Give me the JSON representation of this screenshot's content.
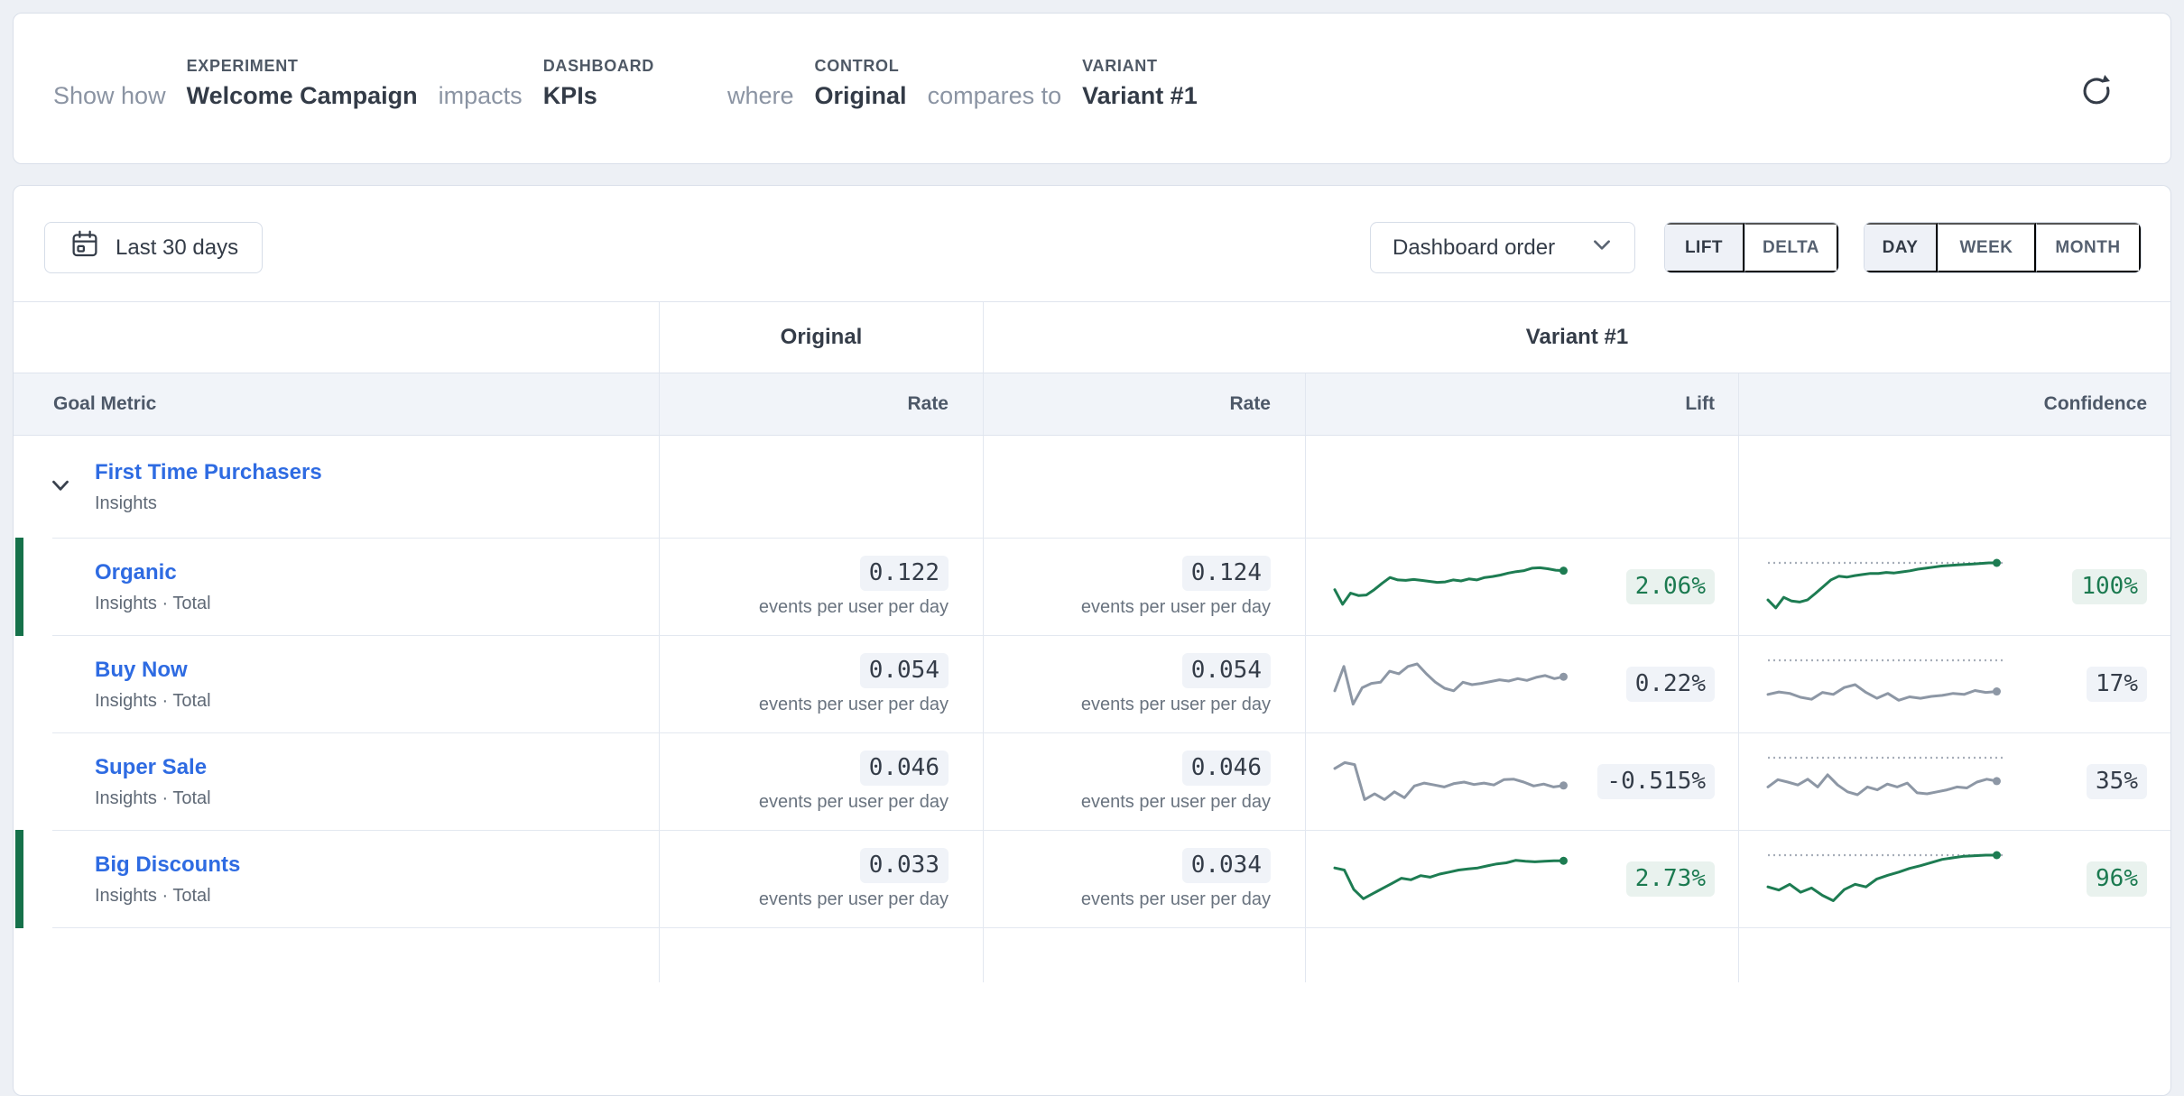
{
  "header": {
    "show_how": "Show how",
    "experiment_label": "EXPERIMENT",
    "experiment_value": "Welcome Campaign",
    "impacts": "impacts",
    "dashboard_label": "DASHBOARD",
    "dashboard_value": "KPIs",
    "where": "where",
    "control_label": "CONTROL",
    "control_value": "Original",
    "compares_to": "compares to",
    "variant_label": "VARIANT",
    "variant_value": "Variant #1"
  },
  "toolbar": {
    "date_range": "Last 30 days",
    "dashboard_order": "Dashboard order",
    "mode_toggle": {
      "0": "LIFT",
      "1": "DELTA"
    },
    "mode_selected": "LIFT",
    "granularity_toggle": {
      "0": "DAY",
      "1": "WEEK",
      "2": "MONTH"
    },
    "granularity_selected": "DAY"
  },
  "table": {
    "group_headers": {
      "control": "Original",
      "variant": "Variant #1"
    },
    "columns": {
      "goal": "Goal Metric",
      "rate_original": "Rate",
      "rate_variant": "Rate",
      "lift": "Lift",
      "confidence": "Confidence"
    },
    "rate_unit": "events per user per day",
    "rows": [
      {
        "type": "group",
        "name": "First Time Purchasers",
        "source": "Insights",
        "expanded": true
      },
      {
        "type": "metric",
        "name": "Organic",
        "source": "Insights · Total",
        "original_rate": "0.122",
        "variant_rate": "0.124",
        "lift": "2.06%",
        "confidence": "100%",
        "positive": true,
        "lift_spark": {
          "color": "green",
          "min": 0,
          "max": 100,
          "values": [
            45,
            15,
            38,
            33,
            34,
            45,
            58,
            70,
            65,
            64,
            66,
            64,
            62,
            60,
            61,
            65,
            63,
            67,
            65,
            70,
            72,
            75,
            79,
            82,
            84,
            89,
            90,
            88,
            85,
            84
          ]
        },
        "conf_spark": {
          "color": "green",
          "min": 8,
          "max": 100,
          "threshold": 100,
          "values": [
            30,
            15,
            35,
            28,
            26,
            30,
            42,
            55,
            68,
            75,
            73,
            76,
            78,
            80,
            80,
            82,
            81,
            83,
            85,
            88,
            90,
            92,
            94,
            95,
            96,
            97,
            98,
            99,
            100,
            100
          ]
        }
      },
      {
        "type": "metric",
        "name": "Buy Now",
        "source": "Insights · Total",
        "original_rate": "0.054",
        "variant_rate": "0.054",
        "lift": "0.22%",
        "confidence": "17%",
        "positive": false,
        "lift_spark": {
          "color": "gray",
          "min": 0,
          "max": 80,
          "values": [
            30,
            70,
            8,
            35,
            42,
            44,
            62,
            58,
            70,
            74,
            58,
            44,
            34,
            30,
            44,
            40,
            42,
            45,
            48,
            46,
            50,
            47,
            52,
            55,
            50,
            53
          ]
        },
        "conf_spark": {
          "color": "gray",
          "min": 0,
          "max": 100,
          "threshold": 100,
          "values": [
            30,
            35,
            32,
            24,
            20,
            34,
            30,
            44,
            50,
            34,
            22,
            32,
            18,
            25,
            22,
            26,
            28,
            32,
            30,
            38,
            34,
            36
          ]
        }
      },
      {
        "type": "metric",
        "name": "Super Sale",
        "source": "Insights · Total",
        "original_rate": "0.046",
        "variant_rate": "0.046",
        "lift": "-0.515%",
        "confidence": "35%",
        "positive": false,
        "lift_spark": {
          "color": "gray",
          "min": 0,
          "max": 100,
          "values": [
            78,
            90,
            86,
            14,
            26,
            14,
            30,
            18,
            42,
            48,
            44,
            40,
            47,
            50,
            45,
            48,
            44,
            55,
            56,
            50,
            42,
            46,
            40,
            43
          ]
        },
        "conf_spark": {
          "color": "gray",
          "min": 0,
          "max": 100,
          "threshold": 100,
          "values": [
            40,
            55,
            50,
            44,
            56,
            40,
            65,
            44,
            30,
            24,
            40,
            34,
            46,
            40,
            48,
            28,
            26,
            30,
            34,
            40,
            38,
            50,
            56,
            52
          ]
        }
      },
      {
        "type": "metric",
        "name": "Big Discounts",
        "source": "Insights · Total",
        "original_rate": "0.033",
        "variant_rate": "0.034",
        "lift": "2.73%",
        "confidence": "96%",
        "positive": true,
        "lift_spark": {
          "color": "green",
          "min": 0,
          "max": 95,
          "values": [
            70,
            66,
            28,
            10,
            20,
            30,
            40,
            50,
            47,
            55,
            52,
            58,
            62,
            66,
            68,
            70,
            74,
            78,
            80,
            85,
            83,
            82,
            83,
            84,
            84
          ]
        },
        "conf_spark": {
          "color": "green",
          "min": 8,
          "max": 100,
          "threshold": 100,
          "values": [
            40,
            34,
            45,
            30,
            38,
            24,
            14,
            35,
            45,
            40,
            55,
            62,
            68,
            75,
            80,
            86,
            92,
            95,
            98,
            99,
            100,
            100
          ]
        }
      }
    ]
  },
  "colors": {
    "spark_green": "#1d7c52",
    "spark_gray": "#8d97a5",
    "dotted_threshold": "#a7aeb9",
    "accent_bar": "#15714a",
    "link_blue": "#2e6be2",
    "positive_text": "#1b7a50",
    "chip_bg": "#f0f3f8",
    "chip_green_bg": "#e9f2ee"
  }
}
